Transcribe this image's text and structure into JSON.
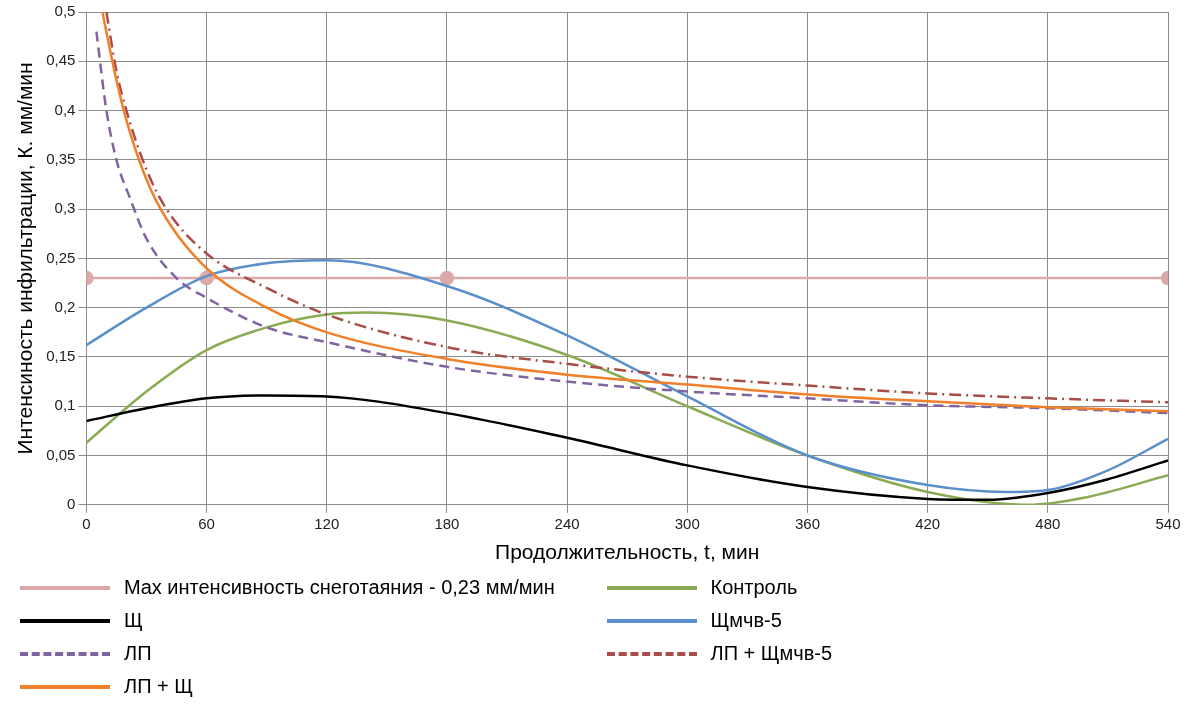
{
  "chart_data": {
    "type": "line",
    "xlabel": "Продолжительность, t, мин",
    "ylabel": "Интенсиность инфильтрации, К. мм/мин",
    "xlim": [
      0,
      540
    ],
    "xticks": [
      0,
      60,
      120,
      180,
      240,
      300,
      360,
      420,
      480,
      540
    ],
    "ylim": [
      0,
      0.5
    ],
    "yticks": [
      {
        "value": 0,
        "label": "0"
      },
      {
        "value": 0.05,
        "label": "0,05"
      },
      {
        "value": 0.1,
        "label": "0,1"
      },
      {
        "value": 0.15,
        "label": "0,15"
      },
      {
        "value": 0.2,
        "label": "0,2"
      },
      {
        "value": 0.25,
        "label": "0,25"
      },
      {
        "value": 0.3,
        "label": "0,3"
      },
      {
        "value": 0.35,
        "label": "0,35"
      },
      {
        "value": 0.4,
        "label": "0,4"
      },
      {
        "value": 0.45,
        "label": "0,45"
      },
      {
        "value": 0.5,
        "label": "0,5"
      }
    ],
    "grid": true,
    "legend": "bottom",
    "series": [
      {
        "name": "Max интенсивность снеготаяния - 0,23 мм/мин",
        "color": "#dba9a9",
        "marker": "circle",
        "line_style": "solid",
        "x": [
          0,
          60,
          180,
          540
        ],
        "values": [
          0.23,
          0.23,
          0.23,
          0.23
        ]
      },
      {
        "name": "Контроль",
        "color": "#8aab54",
        "marker": "none",
        "line_style": "solid",
        "x": [
          0,
          30,
          60,
          90,
          120,
          140,
          180,
          240,
          300,
          360,
          420,
          470,
          500,
          540
        ],
        "values": [
          0.063,
          0.115,
          0.157,
          0.18,
          0.193,
          0.195,
          0.187,
          0.152,
          0.1,
          0.05,
          0.013,
          0.0,
          0.008,
          0.03
        ]
      },
      {
        "name": "Щ",
        "color": "#000000",
        "marker": "none",
        "line_style": "solid",
        "x": [
          0,
          30,
          60,
          90,
          120,
          180,
          240,
          300,
          360,
          420,
          450,
          480,
          510,
          540
        ],
        "values": [
          0.085,
          0.098,
          0.108,
          0.111,
          0.11,
          0.093,
          0.068,
          0.04,
          0.018,
          0.006,
          0.005,
          0.012,
          0.026,
          0.045
        ]
      },
      {
        "name": "Щмчв-5",
        "color": "#5b8fcb",
        "marker": "none",
        "line_style": "solid",
        "x": [
          0,
          30,
          60,
          90,
          120,
          180,
          240,
          300,
          360,
          420,
          460,
          480,
          510,
          540
        ],
        "values": [
          0.162,
          0.2,
          0.232,
          0.245,
          0.248,
          0.222,
          0.172,
          0.11,
          0.05,
          0.02,
          0.013,
          0.015,
          0.035,
          0.067
        ]
      },
      {
        "name": "ЛП",
        "color": "#8064a2",
        "marker": "none",
        "line_style": "dashed",
        "x": [
          5,
          10,
          15,
          22,
          30,
          45,
          60,
          90,
          120,
          180,
          240,
          300,
          360,
          420,
          480,
          540
        ],
        "values": [
          0.48,
          0.4,
          0.35,
          0.31,
          0.27,
          0.23,
          0.21,
          0.18,
          0.165,
          0.14,
          0.125,
          0.115,
          0.108,
          0.101,
          0.098,
          0.093
        ]
      },
      {
        "name": "ЛП + Щмчв-5",
        "color": "#a94d4a",
        "marker": "none",
        "line_style": "dashdot",
        "x": [
          10,
          15,
          20,
          30,
          40,
          60,
          90,
          120,
          180,
          240,
          300,
          360,
          420,
          480,
          540
        ],
        "values": [
          0.5,
          0.44,
          0.4,
          0.34,
          0.3,
          0.255,
          0.22,
          0.193,
          0.16,
          0.143,
          0.13,
          0.121,
          0.113,
          0.108,
          0.104
        ]
      },
      {
        "name": "ЛП + Щ",
        "color": "#f0812a",
        "marker": "none",
        "line_style": "solid",
        "x": [
          8,
          14,
          20,
          30,
          40,
          60,
          90,
          120,
          180,
          240,
          300,
          360,
          420,
          480,
          540
        ],
        "values": [
          0.5,
          0.44,
          0.39,
          0.33,
          0.29,
          0.24,
          0.2,
          0.175,
          0.148,
          0.132,
          0.122,
          0.112,
          0.105,
          0.099,
          0.095
        ]
      }
    ]
  }
}
